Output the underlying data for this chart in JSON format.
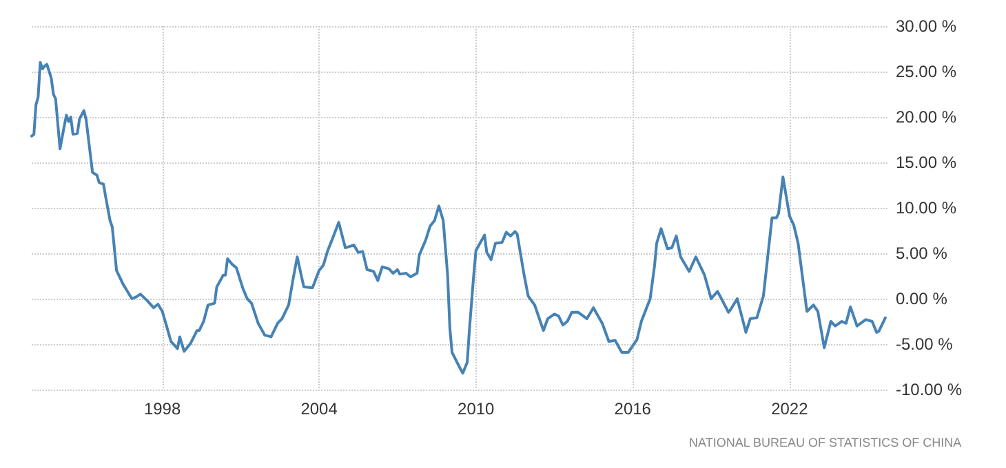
{
  "chart_data": {
    "type": "line",
    "x": [
      "1993-01",
      "1993-02",
      "1993-03",
      "1993-04",
      "1993-05",
      "1993-06",
      "1993-07",
      "1993-08",
      "1993-10",
      "1993-11",
      "1993-12",
      "1994-02",
      "1994-04",
      "1994-05",
      "1994-06",
      "1994-07",
      "1994-08",
      "1994-10",
      "1994-11",
      "1995-01",
      "1995-02",
      "1995-05",
      "1995-07",
      "1995-08",
      "1995-10",
      "1995-11",
      "1996-01",
      "1996-02",
      "1996-04",
      "1996-05",
      "1996-07",
      "1996-09",
      "1996-11",
      "1997-01",
      "1997-03",
      "1997-06",
      "1997-09",
      "1997-11",
      "1998-01",
      "1998-03",
      "1998-05",
      "1998-08",
      "1998-09",
      "1998-11",
      "1999-02",
      "1999-05",
      "1999-06",
      "1999-08",
      "1999-10",
      "2000-01",
      "2000-02",
      "2000-05",
      "2000-06",
      "2000-07",
      "2000-09",
      "2000-11",
      "2001-02",
      "2001-04",
      "2001-06",
      "2001-09",
      "2001-12",
      "2002-03",
      "2002-06",
      "2002-08",
      "2002-11",
      "2003-01",
      "2003-03",
      "2003-06",
      "2003-10",
      "2004-01",
      "2004-03",
      "2004-05",
      "2004-07",
      "2004-10",
      "2005-01",
      "2005-05",
      "2005-07",
      "2005-09",
      "2005-11",
      "2006-02",
      "2006-04",
      "2006-06",
      "2006-09",
      "2006-11",
      "2007-01",
      "2007-02",
      "2007-05",
      "2007-07",
      "2007-10",
      "2007-11",
      "2008-02",
      "2008-04",
      "2008-06",
      "2008-08",
      "2008-10",
      "2008-12",
      "2009-01",
      "2009-02",
      "2009-05",
      "2009-07",
      "2009-09",
      "2009-10",
      "2009-12",
      "2010-01",
      "2010-05",
      "2010-06",
      "2010-08",
      "2010-10",
      "2011-01",
      "2011-03",
      "2011-05",
      "2011-07",
      "2011-08",
      "2011-11",
      "2012-01",
      "2012-04",
      "2012-08",
      "2012-10",
      "2013-01",
      "2013-03",
      "2013-05",
      "2013-07",
      "2013-09",
      "2013-12",
      "2014-04",
      "2014-07",
      "2014-11",
      "2015-02",
      "2015-05",
      "2015-08",
      "2015-11",
      "2016-03",
      "2016-05",
      "2016-09",
      "2016-11",
      "2016-12",
      "2017-02",
      "2017-05",
      "2017-07",
      "2017-09",
      "2017-11",
      "2018-03",
      "2018-06",
      "2018-08",
      "2018-10",
      "2019-01",
      "2019-04",
      "2019-09",
      "2019-10",
      "2020-01",
      "2020-05",
      "2020-07",
      "2020-10",
      "2021-01",
      "2021-05",
      "2021-07",
      "2021-08",
      "2021-10",
      "2022-01",
      "2022-03",
      "2022-05",
      "2022-09",
      "2022-12",
      "2023-02",
      "2023-05",
      "2023-08",
      "2023-10",
      "2024-01",
      "2024-03",
      "2024-05",
      "2024-08",
      "2024-12",
      "2025-03",
      "2025-05",
      "2025-06",
      "2025-09"
    ],
    "series": [
      {
        "color": "#4682b4",
        "values": [
          17.9,
          18.1,
          21.3,
          22.2,
          26.0,
          25.3,
          25.6,
          25.8,
          24.3,
          22.5,
          22.0,
          16.5,
          19.0,
          20.2,
          19.5,
          20.0,
          18.1,
          18.2,
          19.8,
          20.7,
          19.7,
          13.9,
          13.6,
          12.8,
          12.6,
          11.2,
          8.6,
          7.9,
          3.1,
          2.6,
          1.6,
          0.8,
          0.0,
          0.2,
          0.5,
          -0.2,
          -1.0,
          -0.6,
          -1.4,
          -3.0,
          -4.7,
          -5.5,
          -4.2,
          -5.8,
          -4.9,
          -3.5,
          -3.5,
          -2.5,
          -0.7,
          -0.5,
          1.3,
          2.6,
          2.6,
          4.4,
          3.8,
          3.4,
          1.1,
          0.0,
          -0.5,
          -2.7,
          -4.0,
          -4.2,
          -2.7,
          -2.2,
          -0.7,
          2.1,
          4.6,
          1.3,
          1.2,
          3.1,
          3.7,
          5.3,
          6.5,
          8.4,
          5.6,
          5.9,
          5.1,
          5.2,
          3.2,
          3.0,
          2.0,
          3.5,
          3.3,
          2.8,
          3.2,
          2.7,
          2.8,
          2.4,
          2.8,
          4.8,
          6.5,
          8.0,
          8.6,
          10.2,
          8.6,
          2.6,
          -3.2,
          -5.9,
          -7.3,
          -8.2,
          -7.0,
          -3.5,
          2.6,
          5.3,
          7.0,
          5.1,
          4.3,
          6.1,
          6.2,
          7.3,
          6.9,
          7.4,
          7.1,
          2.8,
          0.3,
          -0.7,
          -3.5,
          -2.2,
          -1.7,
          -1.9,
          -2.9,
          -2.5,
          -1.5,
          -1.5,
          -2.2,
          -1.0,
          -2.7,
          -4.7,
          -4.6,
          -5.9,
          -5.9,
          -4.5,
          -2.5,
          0.0,
          3.6,
          6.1,
          7.7,
          5.5,
          5.6,
          6.9,
          4.6,
          3.0,
          4.6,
          3.6,
          2.6,
          0.0,
          0.8,
          -1.5,
          -1.2,
          0.0,
          -3.7,
          -2.2,
          -2.1,
          0.3,
          8.9,
          8.9,
          9.4,
          13.4,
          9.1,
          8.1,
          6.1,
          -1.4,
          -0.7,
          -1.4,
          -5.4,
          -2.5,
          -3.0,
          -2.5,
          -2.7,
          -0.9,
          -3.0,
          -2.3,
          -2.5,
          -3.7,
          -3.6,
          -2.1
        ]
      }
    ],
    "xlim": [
      "1993-01",
      "2025-10"
    ],
    "xticks": [
      "1998",
      "2004",
      "2010",
      "2016",
      "2022"
    ],
    "ylim": [
      -10,
      30
    ],
    "yticks": [
      {
        "value": -10,
        "label": "-10.00 %"
      },
      {
        "value": -5,
        "label": "-5.00 %"
      },
      {
        "value": 0,
        "label": "0.00 %"
      },
      {
        "value": 5,
        "label": "5.00 %"
      },
      {
        "value": 10,
        "label": "10.00 %"
      },
      {
        "value": 15,
        "label": "15.00 %"
      },
      {
        "value": 20,
        "label": "20.00 %"
      },
      {
        "value": 25,
        "label": "25.00 %"
      },
      {
        "value": 30,
        "label": "30.00 %"
      }
    ],
    "grid": true,
    "annotations": [
      "NATIONAL BUREAU OF STATISTICS OF CHINA"
    ]
  }
}
